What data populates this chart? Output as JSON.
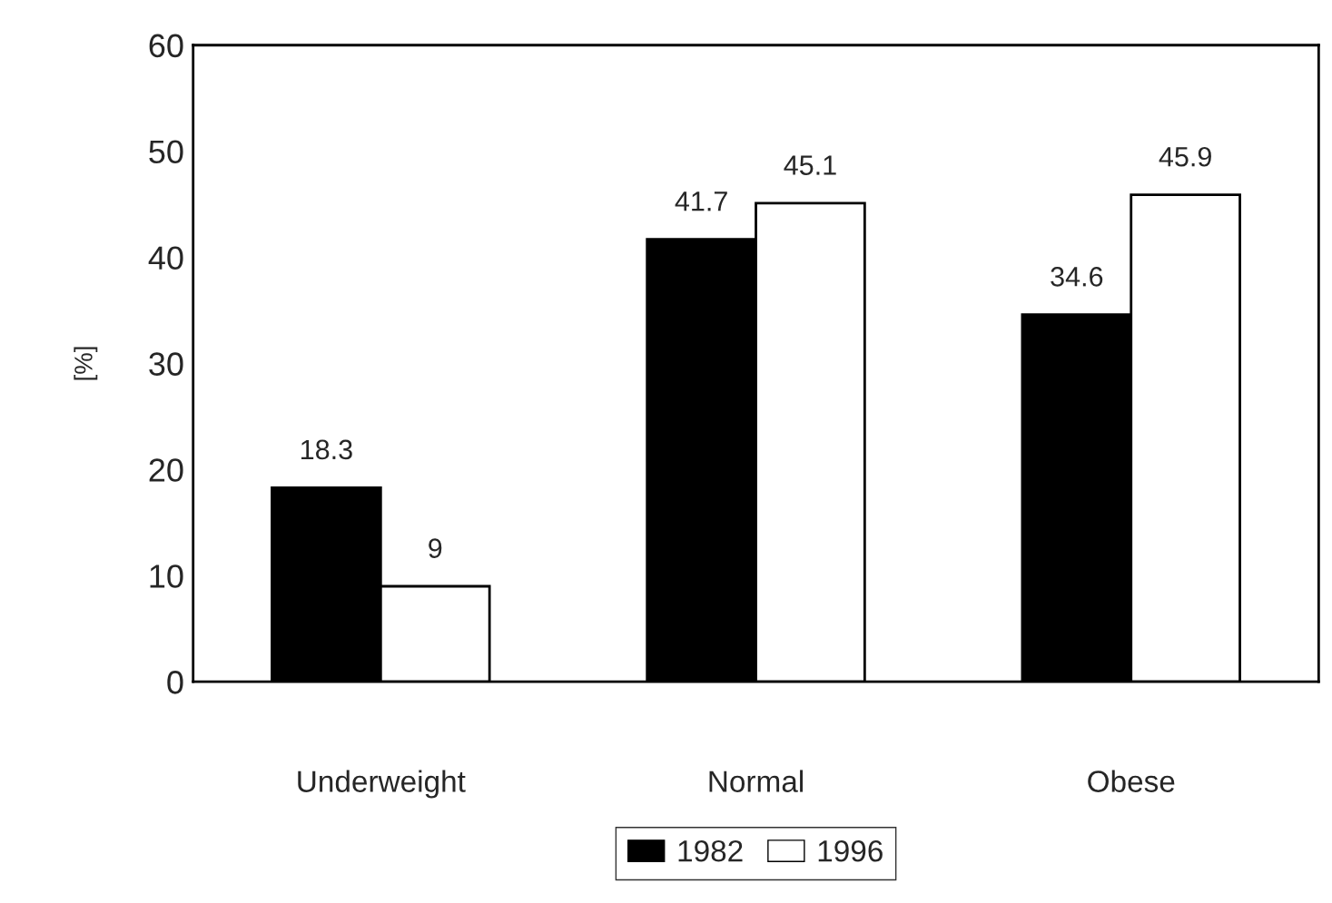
{
  "chart_data": {
    "type": "bar",
    "ylabel": "[%]",
    "categories": [
      "Underweight",
      "Normal",
      "Obese"
    ],
    "series": [
      {
        "name": "1982",
        "color": "#000000",
        "values": [
          18.3,
          41.7,
          34.6
        ]
      },
      {
        "name": "1996",
        "color": "#ffffff",
        "values": [
          9,
          45.1,
          45.9
        ]
      }
    ],
    "ylim": [
      0,
      60
    ],
    "yticks": [
      0,
      10,
      20,
      30,
      40,
      50,
      60
    ],
    "data_labels": true,
    "legend": "bottom",
    "grid": false
  }
}
